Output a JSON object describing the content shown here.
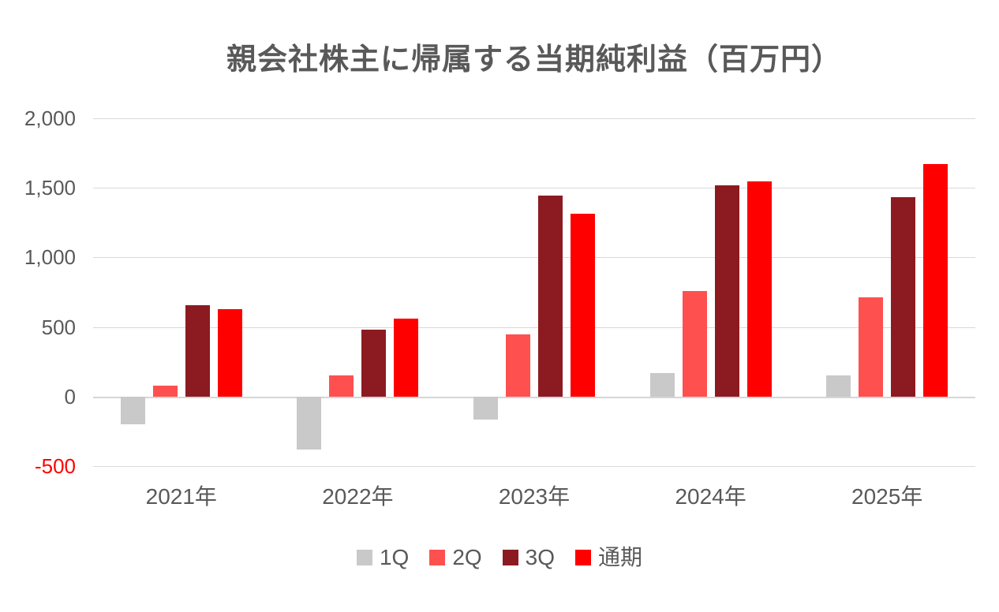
{
  "chart_data": {
    "type": "bar",
    "title": "親会社株主に帰属する当期純利益（百万円）",
    "categories": [
      "2021年",
      "2022年",
      "2023年",
      "2024年",
      "2025年"
    ],
    "series": [
      {
        "key": "q1",
        "name": "1Q",
        "color": "#c9c9c9",
        "values": [
          -200,
          -380,
          -165,
          170,
          150
        ]
      },
      {
        "key": "q2",
        "name": "2Q",
        "color": "#ff5050",
        "values": [
          80,
          150,
          445,
          760,
          715
        ]
      },
      {
        "key": "q3",
        "name": "3Q",
        "color": "#8b1b21",
        "values": [
          655,
          480,
          1445,
          1520,
          1435
        ]
      },
      {
        "key": "fy",
        "name": "通期",
        "color": "#ff0000",
        "values": [
          630,
          560,
          1315,
          1545,
          1670
        ]
      }
    ],
    "xlabel": "",
    "ylabel": "",
    "ylim": [
      -500,
      2000
    ],
    "yticks": [
      2000,
      1500,
      1000,
      500,
      0,
      -500
    ],
    "ytick_labels": [
      "2,000",
      "1,500",
      "1,000",
      "500",
      "0",
      "-500"
    ],
    "grid": true,
    "legend_position": "bottom"
  },
  "colors": {
    "background": "#ffffff",
    "title_text": "#595959",
    "axis_text": "#595959",
    "negative_tick_text": "#ff0000",
    "gridline": "#d9d9d9"
  }
}
